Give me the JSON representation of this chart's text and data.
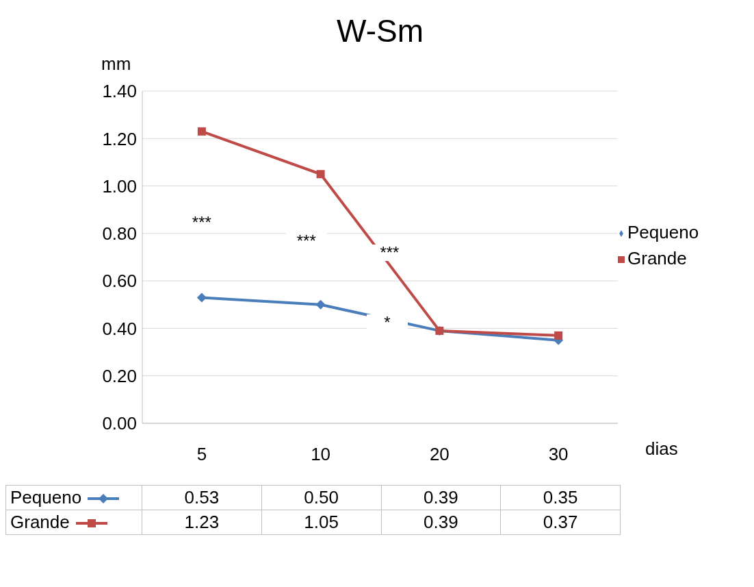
{
  "chart_data": {
    "type": "line",
    "title": "W-Sm",
    "ylabel": "mm",
    "xlabel": "dias",
    "categories": [
      "5",
      "10",
      "20",
      "30"
    ],
    "series": [
      {
        "name": "Pequeno",
        "color": "#4a7ebb",
        "marker": "diamond",
        "values": [
          0.53,
          0.5,
          0.39,
          0.35
        ],
        "value_labels": [
          "0.53",
          "0.50",
          "0.39",
          "0.35"
        ]
      },
      {
        "name": "Grande",
        "color": "#be4b48",
        "marker": "square",
        "values": [
          1.23,
          1.05,
          0.39,
          0.37
        ],
        "value_labels": [
          "1.23",
          "1.05",
          "0.39",
          "0.37"
        ]
      }
    ],
    "ylim": [
      0,
      1.4
    ],
    "yticks": [
      {
        "value": 0,
        "label": "0.00"
      },
      {
        "value": 0.2,
        "label": "0.20"
      },
      {
        "value": 0.4,
        "label": "0.40"
      },
      {
        "value": 0.6,
        "label": "0.60"
      },
      {
        "value": 0.8,
        "label": "0.80"
      },
      {
        "value": 1.0,
        "label": "1.00"
      },
      {
        "value": 1.2,
        "label": "1.20"
      },
      {
        "value": 1.4,
        "label": "1.40"
      }
    ],
    "grid": "y",
    "legend": "right",
    "annotations": [
      "***",
      "***",
      "***",
      "*"
    ]
  }
}
